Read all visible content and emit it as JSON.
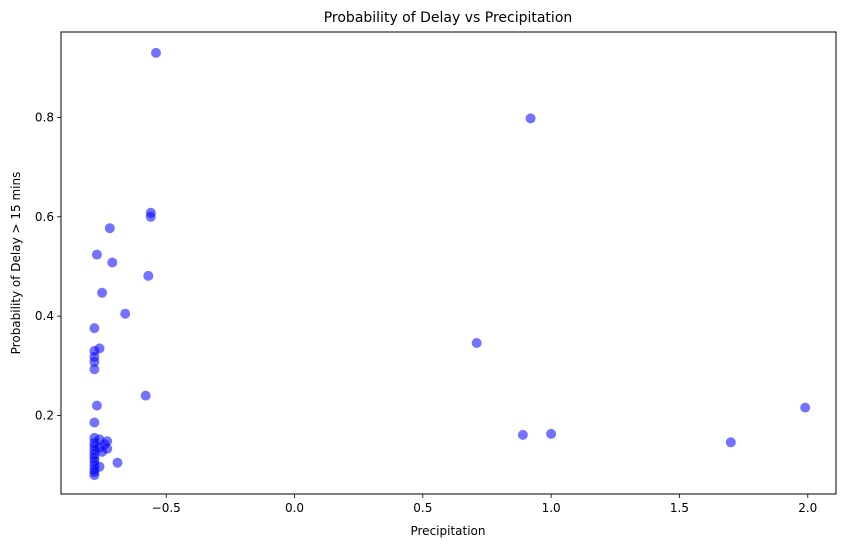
{
  "chart_data": {
    "type": "scatter",
    "title": "Probability of Delay vs Precipitation",
    "xlabel": "Precipitation",
    "ylabel": "Probability of Delay > 15 mins",
    "xlim": [
      -0.91,
      2.11
    ],
    "ylim": [
      0.042,
      0.972
    ],
    "xticks": [
      -0.5,
      0.0,
      0.5,
      1.0,
      1.5,
      2.0
    ],
    "xtick_labels": [
      "−0.5",
      "0.0",
      "0.5",
      "1.0",
      "1.5",
      "2.0"
    ],
    "yticks": [
      0.2,
      0.4,
      0.6,
      0.8
    ],
    "ytick_labels": [
      "0.2",
      "0.4",
      "0.6",
      "0.8"
    ],
    "grid": false,
    "marker_color": "#0000ff",
    "marker_alpha": 0.55,
    "points": [
      {
        "x": -0.54,
        "y": 0.93
      },
      {
        "x": 0.92,
        "y": 0.798
      },
      {
        "x": -0.56,
        "y": 0.608
      },
      {
        "x": -0.56,
        "y": 0.6
      },
      {
        "x": -0.72,
        "y": 0.577
      },
      {
        "x": -0.77,
        "y": 0.524
      },
      {
        "x": -0.71,
        "y": 0.508
      },
      {
        "x": -0.57,
        "y": 0.481
      },
      {
        "x": -0.75,
        "y": 0.447
      },
      {
        "x": -0.66,
        "y": 0.405
      },
      {
        "x": -0.78,
        "y": 0.376
      },
      {
        "x": 0.71,
        "y": 0.346
      },
      {
        "x": -0.76,
        "y": 0.335
      },
      {
        "x": -0.78,
        "y": 0.33
      },
      {
        "x": -0.78,
        "y": 0.318
      },
      {
        "x": -0.78,
        "y": 0.308
      },
      {
        "x": -0.78,
        "y": 0.293
      },
      {
        "x": -0.58,
        "y": 0.24
      },
      {
        "x": -0.77,
        "y": 0.22
      },
      {
        "x": 1.99,
        "y": 0.216
      },
      {
        "x": -0.78,
        "y": 0.186
      },
      {
        "x": 1.0,
        "y": 0.163
      },
      {
        "x": 0.89,
        "y": 0.161
      },
      {
        "x": -0.78,
        "y": 0.155
      },
      {
        "x": -0.76,
        "y": 0.152
      },
      {
        "x": -0.73,
        "y": 0.148
      },
      {
        "x": 1.7,
        "y": 0.146
      },
      {
        "x": -0.78,
        "y": 0.145
      },
      {
        "x": -0.74,
        "y": 0.142
      },
      {
        "x": -0.78,
        "y": 0.138
      },
      {
        "x": -0.76,
        "y": 0.135
      },
      {
        "x": -0.73,
        "y": 0.133
      },
      {
        "x": -0.78,
        "y": 0.13
      },
      {
        "x": -0.75,
        "y": 0.127
      },
      {
        "x": -0.78,
        "y": 0.122
      },
      {
        "x": -0.78,
        "y": 0.115
      },
      {
        "x": -0.78,
        "y": 0.108
      },
      {
        "x": -0.69,
        "y": 0.105
      },
      {
        "x": -0.78,
        "y": 0.1
      },
      {
        "x": -0.76,
        "y": 0.097
      },
      {
        "x": -0.78,
        "y": 0.092
      },
      {
        "x": -0.78,
        "y": 0.086
      },
      {
        "x": -0.78,
        "y": 0.08
      }
    ]
  }
}
